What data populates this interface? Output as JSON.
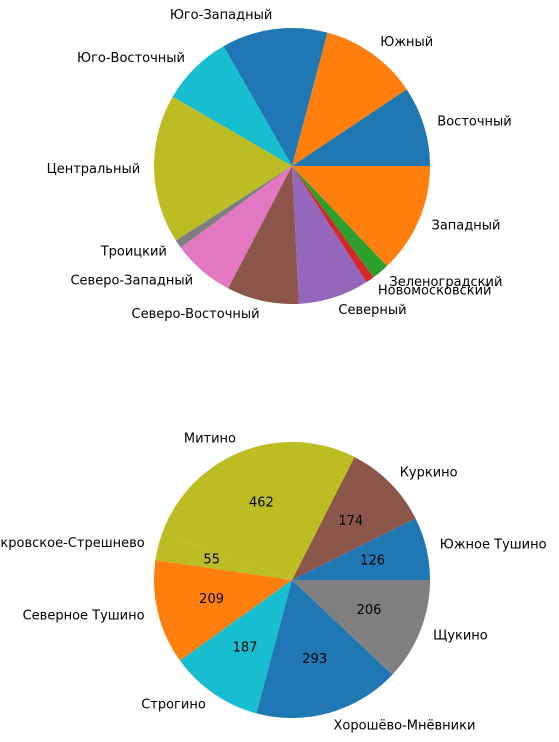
{
  "chart_data": [
    {
      "type": "pie",
      "categories": [
        "Восточный",
        "Южный",
        "Юго-Западный",
        "Юго-Восточный",
        "Центральный",
        "Троицкий",
        "Северо-Западный",
        "Северо-Восточный",
        "Северный",
        "Новомосковский",
        "Зеленоградский",
        "Западный"
      ],
      "values": [
        9.3,
        11.4,
        12.3,
        8.3,
        17.3,
        1.0,
        7.2,
        8.4,
        8.2,
        1.0,
        2.0,
        12.8
      ],
      "start_angle_deg": 0,
      "direction": "counterclockwise",
      "colors": [
        "#1f77b4",
        "#ff7f0e",
        "#1f77b4",
        "#17becf",
        "#bcbd22",
        "#7f7f7f",
        "#e377c2",
        "#8c564b",
        "#9467bd",
        "#d62728",
        "#2ca02c",
        "#ff7f0e"
      ],
      "show_values": false,
      "title": ""
    },
    {
      "type": "pie",
      "categories": [
        "Южное Тушино",
        "Куркино",
        "Митино",
        "Покровское-Стрешнево",
        "Северное Тушино",
        "Строгино",
        "Хорошёво-Мнёвники",
        "Щукино"
      ],
      "values": [
        126,
        174,
        462,
        55,
        209,
        187,
        293,
        206
      ],
      "value_labels": [
        "126",
        "174",
        "462",
        "55",
        "209",
        "187",
        "293",
        "206"
      ],
      "start_angle_deg": 0,
      "direction": "counterclockwise",
      "colors": [
        "#1f77b4",
        "#8c564b",
        "#bcbd22",
        "#bcbd22",
        "#ff7f0e",
        "#17becf",
        "#1f77b4",
        "#7f7f7f"
      ],
      "show_values": true,
      "title": ""
    }
  ]
}
